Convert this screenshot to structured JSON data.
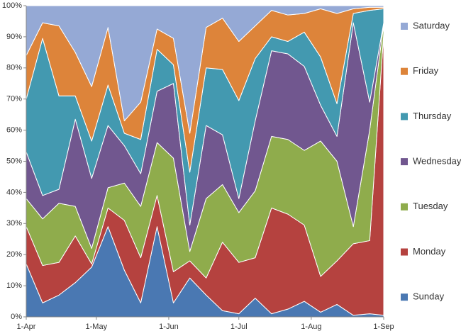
{
  "chart_data": {
    "type": "area",
    "stacked_percent": true,
    "x": [
      "1-Apr",
      "8-Apr",
      "15-Apr",
      "22-Apr",
      "29-Apr",
      "6-May",
      "13-May",
      "20-May",
      "27-May",
      "3-Jun",
      "10-Jun",
      "17-Jun",
      "24-Jun",
      "1-Jul",
      "8-Jul",
      "15-Jul",
      "22-Jul",
      "29-Jul",
      "5-Aug",
      "12-Aug",
      "19-Aug",
      "26-Aug",
      "1-Sep"
    ],
    "xticks": [
      "1-Apr",
      "1-May",
      "1-Jun",
      "1-Jul",
      "1-Aug",
      "1-Sep"
    ],
    "ylim": [
      0,
      100
    ],
    "yticks": [
      {
        "value": 0,
        "label": "0%"
      },
      {
        "value": 10,
        "label": "10%"
      },
      {
        "value": 20,
        "label": "20%"
      },
      {
        "value": 30,
        "label": "30%"
      },
      {
        "value": 40,
        "label": "40%"
      },
      {
        "value": 50,
        "label": "50%"
      },
      {
        "value": 60,
        "label": "60%"
      },
      {
        "value": 70,
        "label": "70%"
      },
      {
        "value": 80,
        "label": "80%"
      },
      {
        "value": 90,
        "label": "90%"
      },
      {
        "value": 100,
        "label": "100%"
      }
    ],
    "series": [
      {
        "name": "Sunday",
        "color": "#4a78b2",
        "values": [
          17,
          4.5,
          7,
          11,
          16,
          29,
          15,
          4.5,
          29,
          4.5,
          12.5,
          7,
          2,
          1,
          6,
          1,
          2.5,
          5,
          1.5,
          4,
          0.5,
          1,
          0.5
        ]
      },
      {
        "name": "Monday",
        "color": "#b5423f",
        "values": [
          12,
          12,
          10.5,
          15,
          1,
          6,
          16,
          14.5,
          10,
          10,
          5.5,
          5.5,
          22,
          16.5,
          13,
          34,
          30.5,
          24.5,
          11.5,
          14,
          23,
          23.5,
          90.5
        ]
      },
      {
        "name": "Tuesday",
        "color": "#8fac4c",
        "values": [
          9,
          15,
          19,
          9.5,
          5,
          6.5,
          12,
          16.5,
          17,
          36.5,
          3,
          25.5,
          18.5,
          16,
          21.5,
          23,
          24,
          24,
          43.5,
          32,
          5.5,
          35.5,
          3
        ]
      },
      {
        "name": "Wednesday",
        "color": "#71578f",
        "values": [
          15,
          7.5,
          4.5,
          28,
          22.5,
          20,
          12,
          10.5,
          16.5,
          24,
          8.5,
          23.5,
          16,
          4.5,
          22.5,
          27.5,
          27.5,
          27,
          11.5,
          8,
          65.5,
          9,
          0.5
        ]
      },
      {
        "name": "Thursday",
        "color": "#4399b0",
        "values": [
          17,
          50.5,
          30,
          7.5,
          12,
          13,
          4,
          11,
          13.5,
          6,
          17,
          18.5,
          21,
          31.5,
          20,
          4.5,
          4,
          11,
          15.5,
          10.5,
          3,
          29.5,
          4.5
        ]
      },
      {
        "name": "Friday",
        "color": "#dd843a",
        "values": [
          14,
          5,
          22.5,
          14,
          17.5,
          18.5,
          4,
          12,
          6.5,
          8.5,
          12.5,
          13,
          16.5,
          19,
          10.5,
          8.5,
          8.5,
          6,
          15.5,
          29,
          1.5,
          1,
          0.5
        ]
      },
      {
        "name": "Saturday",
        "color": "#95a9d5",
        "values": [
          16,
          5.5,
          6.5,
          15,
          26,
          7,
          37,
          31,
          7.5,
          10.5,
          41,
          7,
          4,
          11.5,
          6.5,
          1.5,
          3,
          2.5,
          1,
          2.5,
          1,
          0.5,
          0.5
        ]
      }
    ]
  }
}
